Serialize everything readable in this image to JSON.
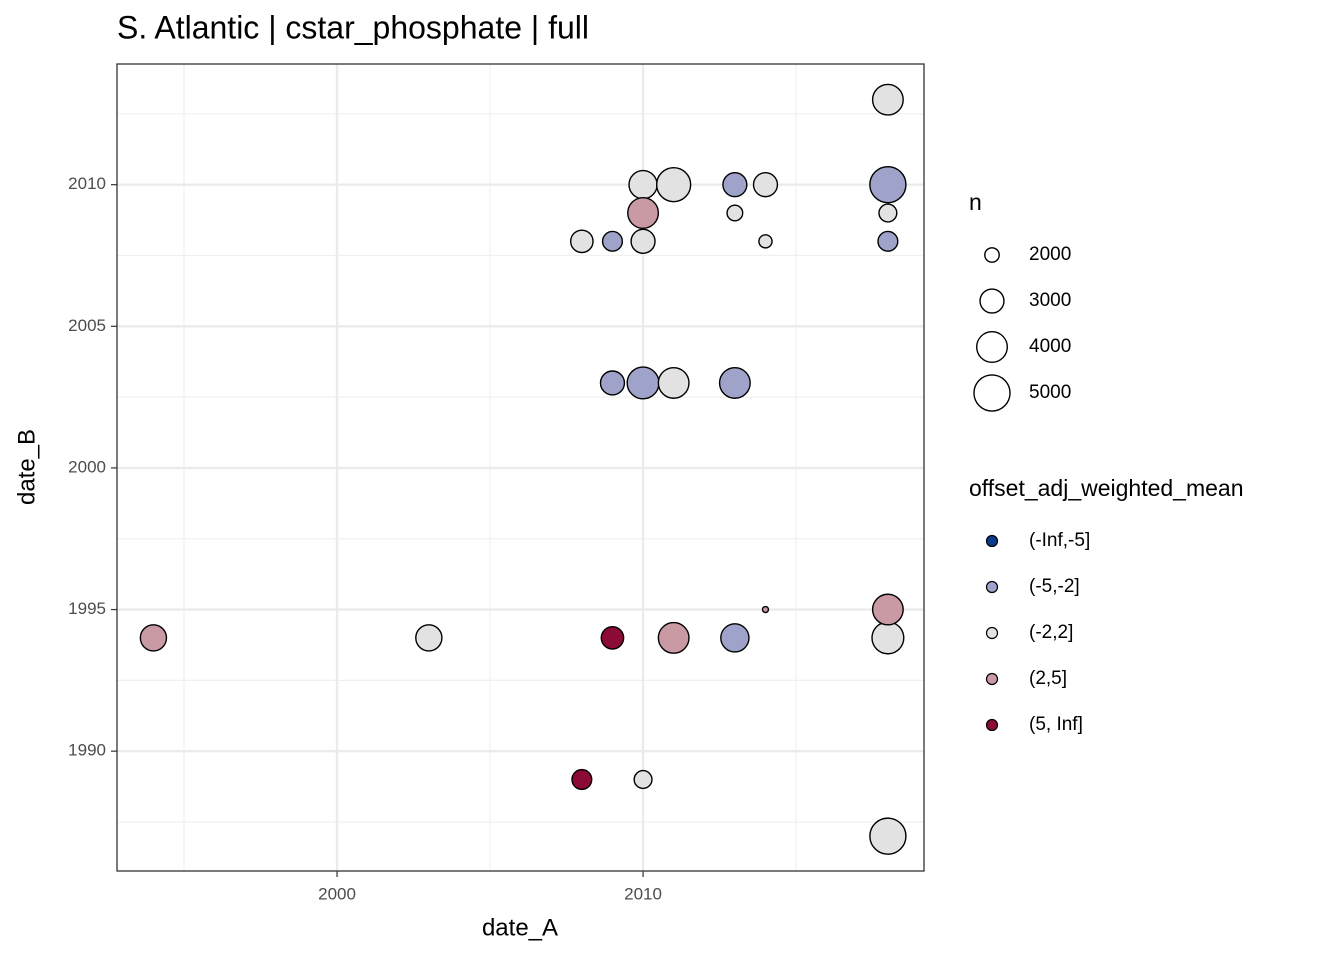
{
  "chart_data": {
    "type": "scatter",
    "title": "S. Atlantic | cstar_phosphate | full",
    "x_label": "date_A",
    "y_label": "date_B",
    "xlim": [
      1992.81,
      2019.18
    ],
    "ylim": [
      1985.77,
      2014.26
    ],
    "xticks": [
      2000,
      2010
    ],
    "yticks": [
      1990,
      1995,
      2000,
      2005,
      2010
    ],
    "x_minor_ticks": [
      1995,
      2005,
      2015
    ],
    "y_minor_ticks": [
      1987.5,
      1992.5,
      1997.5,
      2002.5,
      2007.5,
      2012.5
    ],
    "grid": true,
    "size_legend": {
      "title": "n",
      "values": [
        2000,
        3000,
        4000,
        5000
      ]
    },
    "color_legend_title": "offset_adj_weighted_mean",
    "series": [
      {
        "name": "(-Inf,-5]",
        "color": "#0c3a8f",
        "x": [],
        "y": [],
        "sizes": []
      },
      {
        "name": "(-5,-2]",
        "color": "#9fa3c9",
        "x": [
          2013,
          2018,
          2009,
          2018,
          2009,
          2010,
          2013,
          2013
        ],
        "y": [
          2010,
          2010,
          2008,
          2008,
          2003,
          2003,
          2003,
          1994
        ],
        "sizes": [
          3000,
          5000,
          2500,
          2500,
          3000,
          4200,
          4000,
          3600
        ]
      },
      {
        "name": "(-2,2]",
        "color": "#e2e2e2",
        "x": [
          2018,
          2010,
          2011,
          2014,
          2013,
          2018,
          2008,
          2010,
          2014,
          2011,
          2003,
          2018,
          2010,
          2018
        ],
        "y": [
          2013,
          2010,
          2010,
          2010,
          2009,
          2009,
          2008,
          2008,
          2008,
          2003,
          1994,
          1994,
          1989,
          1987
        ],
        "sizes": [
          4000,
          3600,
          4600,
          3000,
          2100,
          2300,
          2800,
          3000,
          1900,
          4000,
          3300,
          4200,
          2300,
          5000
        ]
      },
      {
        "name": "(2,5]",
        "color": "#c99aa3",
        "x": [
          2010,
          2014,
          2018,
          1994,
          2011
        ],
        "y": [
          2009,
          1995,
          1995,
          1994,
          1994
        ],
        "sizes": [
          4000,
          1500,
          4000,
          3300,
          4000
        ]
      },
      {
        "name": "(5, Inf]",
        "color": "#8c0b36",
        "x": [
          2009,
          2008
        ],
        "y": [
          1994,
          1989
        ],
        "sizes": [
          2800,
          2500
        ]
      }
    ]
  }
}
